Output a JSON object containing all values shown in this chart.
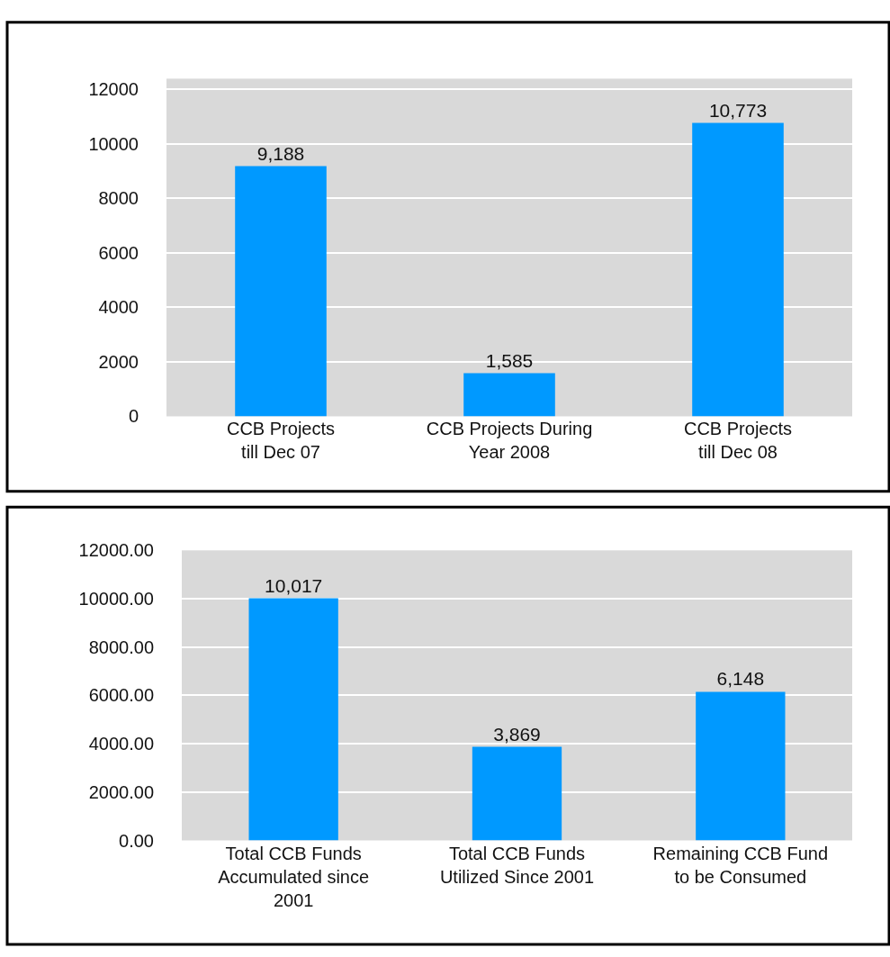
{
  "chart_data": [
    {
      "type": "bar",
      "categories": [
        "CCB Projects\ntill Dec 07",
        "CCB Projects During\nYear 2008",
        "CCB Projects\ntill Dec 08"
      ],
      "values": [
        9188,
        1585,
        10773
      ],
      "value_labels": [
        "9,188",
        "1,585",
        "10,773"
      ],
      "color": "#0099ff",
      "ylim": [
        0,
        12400
      ],
      "yticks": [
        0,
        2000,
        4000,
        6000,
        8000,
        10000,
        12000
      ],
      "grid": "y"
    },
    {
      "type": "bar",
      "categories": [
        "Total CCB Funds\nAccumulated since\n2001",
        "Total CCB Funds\nUtilized Since 2001",
        "Remaining CCB Fund\nto be Consumed"
      ],
      "values": [
        10017,
        3869,
        6148
      ],
      "value_labels": [
        "10,017",
        "3,869",
        "6,148"
      ],
      "color": "#0099ff",
      "ylim": [
        0,
        12000
      ],
      "yticks": [
        {
          "value": 0,
          "label": "0.00"
        },
        {
          "value": 2000,
          "label": "2000.00"
        },
        {
          "value": 4000,
          "label": "4000.00"
        },
        {
          "value": 6000,
          "label": "6000.00"
        },
        {
          "value": 8000,
          "label": "8000.00"
        },
        {
          "value": 10000,
          "label": "10000.00"
        },
        {
          "value": 12000,
          "label": "12000.00"
        }
      ],
      "grid": "y"
    }
  ]
}
